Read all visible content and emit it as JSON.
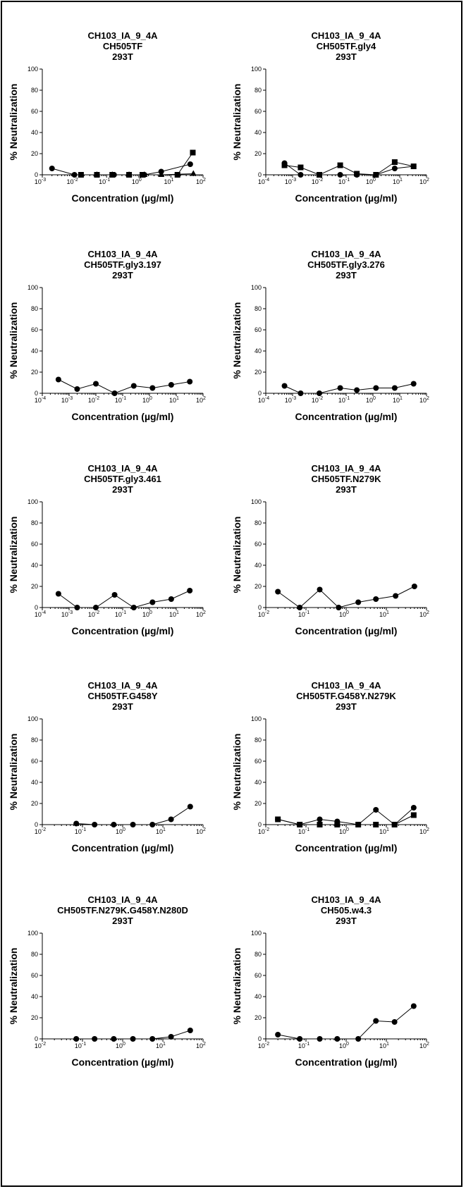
{
  "axis_labels": {
    "x_prefix": "Concentration (",
    "x_mu": "µ",
    "x_suffix": "g/ml)",
    "y": "% Neutralization"
  },
  "y_ticks": [
    "0",
    "20",
    "40",
    "60",
    "80",
    "100"
  ],
  "marker_color": "#000000",
  "chart_data": [
    {
      "type": "line",
      "title": [
        "CH103_IA_9_4A",
        "CH505TF",
        "293T"
      ],
      "xscale": "log",
      "xlim_exp": [
        -3,
        2
      ],
      "ylim": [
        0,
        100
      ],
      "series": [
        {
          "marker": "circle",
          "x": [
            0.002,
            0.01,
            0.05,
            0.17,
            0.5,
            1.5,
            5,
            40
          ],
          "y": [
            6,
            0,
            0,
            0,
            0,
            0,
            3,
            10
          ]
        },
        {
          "marker": "square",
          "x": [
            0.016,
            0.05,
            0.15,
            0.5,
            1.3,
            16,
            48
          ],
          "y": [
            0,
            0,
            0,
            0,
            0,
            0,
            21
          ]
        },
        {
          "marker": "triangle",
          "x": [
            0.05,
            0.15,
            0.5,
            1.5,
            5,
            50
          ],
          "y": [
            0,
            0,
            0,
            0,
            0,
            1
          ]
        }
      ]
    },
    {
      "type": "line",
      "title": [
        "CH103_IA_9_4A",
        "CH505TF.gly4",
        "293T"
      ],
      "xscale": "log",
      "xlim_exp": [
        -4,
        2
      ],
      "ylim": [
        0,
        100
      ],
      "series": [
        {
          "marker": "circle",
          "x": [
            0.0005,
            0.002,
            0.01,
            0.06,
            0.25,
            1.3,
            6.5,
            33
          ],
          "y": [
            11,
            0,
            0,
            0,
            0,
            0,
            6,
            8
          ]
        },
        {
          "marker": "square",
          "x": [
            0.0005,
            0.002,
            0.01,
            0.06,
            0.25,
            1.3,
            6.5,
            33
          ],
          "y": [
            9,
            7,
            0,
            9,
            1,
            0,
            12,
            8
          ]
        }
      ]
    },
    {
      "type": "line",
      "title": [
        "CH103_IA_9_4A",
        "CH505TF.gly3.197",
        "293T"
      ],
      "xscale": "log",
      "xlim_exp": [
        -4,
        2
      ],
      "ylim": [
        0,
        100
      ],
      "series": [
        {
          "marker": "circle",
          "x": [
            0.0004,
            0.002,
            0.01,
            0.05,
            0.26,
            1.3,
            6.5,
            32
          ],
          "y": [
            13,
            4,
            9,
            0,
            7,
            5,
            8,
            11
          ]
        }
      ]
    },
    {
      "type": "line",
      "title": [
        "CH103_IA_9_4A",
        "CH505TF.gly3.276",
        "293T"
      ],
      "xscale": "log",
      "xlim_exp": [
        -4,
        2
      ],
      "ylim": [
        0,
        100
      ],
      "series": [
        {
          "marker": "circle",
          "x": [
            0.0005,
            0.002,
            0.01,
            0.06,
            0.25,
            1.3,
            6.5,
            33
          ],
          "y": [
            7,
            0,
            0,
            5,
            3,
            5,
            5,
            9
          ]
        }
      ]
    },
    {
      "type": "line",
      "title": [
        "CH103_IA_9_4A",
        "CH505TF.gly3.461",
        "293T"
      ],
      "xscale": "log",
      "xlim_exp": [
        -4,
        2
      ],
      "ylim": [
        0,
        100
      ],
      "series": [
        {
          "marker": "circle",
          "x": [
            0.0004,
            0.002,
            0.01,
            0.05,
            0.26,
            1.3,
            6.5,
            32
          ],
          "y": [
            13,
            0,
            0,
            12,
            0,
            5,
            8,
            16
          ]
        }
      ]
    },
    {
      "type": "line",
      "title": [
        "CH103_IA_9_4A",
        "CH505TF.N279K",
        "293T"
      ],
      "xscale": "log",
      "xlim_exp": [
        -2,
        2
      ],
      "ylim": [
        0,
        100
      ],
      "series": [
        {
          "marker": "circle",
          "x": [
            0.02,
            0.07,
            0.22,
            0.65,
            2,
            5.5,
            17,
            50
          ],
          "y": [
            15,
            0,
            17,
            0,
            5,
            8,
            11,
            20
          ]
        }
      ]
    },
    {
      "type": "line",
      "title": [
        "CH103_IA_9_4A",
        "CH505TF.G458Y",
        "293T"
      ],
      "xscale": "log",
      "xlim_exp": [
        -2,
        2
      ],
      "ylim": [
        0,
        100
      ],
      "series": [
        {
          "marker": "circle",
          "x": [
            0.07,
            0.2,
            0.6,
            1.8,
            5.5,
            16,
            48
          ],
          "y": [
            1,
            0,
            0,
            0,
            0,
            5,
            17
          ]
        }
      ]
    },
    {
      "type": "line",
      "title": [
        "CH103_IA_9_4A",
        "CH505TF.G458Y.N279K",
        "293T"
      ],
      "xscale": "log",
      "xlim_exp": [
        -2,
        2
      ],
      "ylim": [
        0,
        100
      ],
      "series": [
        {
          "marker": "circle",
          "x": [
            0.02,
            0.07,
            0.22,
            0.6,
            2,
            5.5,
            16,
            48
          ],
          "y": [
            5,
            0,
            5,
            3,
            0,
            14,
            0,
            16
          ]
        },
        {
          "marker": "square",
          "x": [
            0.02,
            0.07,
            0.22,
            0.6,
            2,
            5.5,
            16,
            48
          ],
          "y": [
            5,
            0,
            0,
            0,
            0,
            0,
            0,
            9
          ]
        }
      ]
    },
    {
      "type": "line",
      "title": [
        "CH103_IA_9_4A",
        "CH505TF.N279K.G458Y.N280D",
        "293T"
      ],
      "xscale": "log",
      "xlim_exp": [
        -2,
        2
      ],
      "ylim": [
        0,
        100
      ],
      "series": [
        {
          "marker": "circle",
          "x": [
            0.07,
            0.2,
            0.6,
            1.8,
            5.5,
            16,
            48
          ],
          "y": [
            0,
            0,
            0,
            0,
            0,
            2,
            8
          ]
        }
      ]
    },
    {
      "type": "line",
      "title": [
        "CH103_IA_9_4A",
        "CH505.w4.3",
        "293T"
      ],
      "xscale": "log",
      "xlim_exp": [
        -2,
        2
      ],
      "ylim": [
        0,
        100
      ],
      "series": [
        {
          "marker": "circle",
          "x": [
            0.02,
            0.07,
            0.22,
            0.6,
            2,
            5.5,
            16,
            48
          ],
          "y": [
            4,
            0,
            0,
            0,
            0,
            17,
            16,
            31
          ]
        }
      ]
    }
  ]
}
